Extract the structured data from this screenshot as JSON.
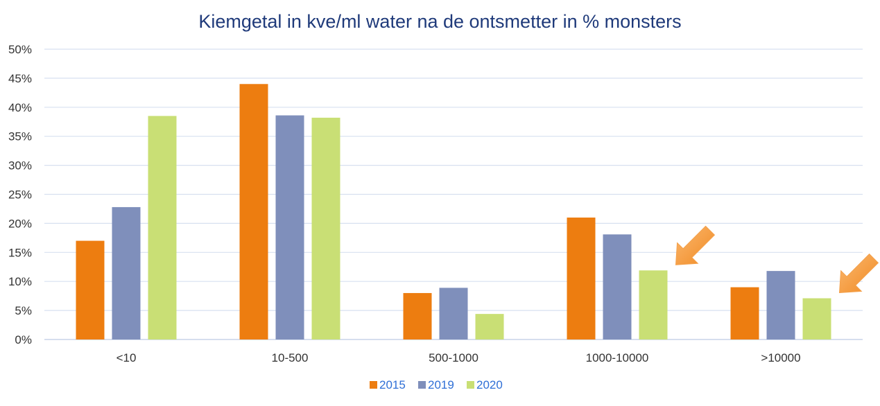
{
  "chart_data": {
    "type": "bar",
    "title": "Kiemgetal in kve/ml water na de ontsmetter in % monsters",
    "categories": [
      "<10",
      "10-500",
      "500-1000",
      "1000-10000",
      ">10000"
    ],
    "series": [
      {
        "name": "2015",
        "color": "#ed7d10",
        "values": [
          17,
          44,
          8,
          21,
          9
        ]
      },
      {
        "name": "2019",
        "color": "#7f8fbb",
        "values": [
          22.8,
          38.6,
          8.9,
          18.1,
          11.8
        ]
      },
      {
        "name": "2020",
        "color": "#c9df75",
        "values": [
          38.5,
          38.2,
          4.4,
          11.9,
          7.1
        ]
      }
    ],
    "ylim": [
      0,
      50
    ],
    "ytick_step": 5,
    "ytick_labels": [
      "0%",
      "5%",
      "10%",
      "15%",
      "20%",
      "25%",
      "30%",
      "35%",
      "40%",
      "45%",
      "50%"
    ],
    "grid": true,
    "legend_position": "bottom-center",
    "annotations": [
      {
        "type": "arrow",
        "category": "1000-10000",
        "series": "2020",
        "color": "#f59a3c"
      },
      {
        "type": "arrow",
        "category": ">10000",
        "series": "2020",
        "color": "#f59a3c"
      }
    ]
  }
}
